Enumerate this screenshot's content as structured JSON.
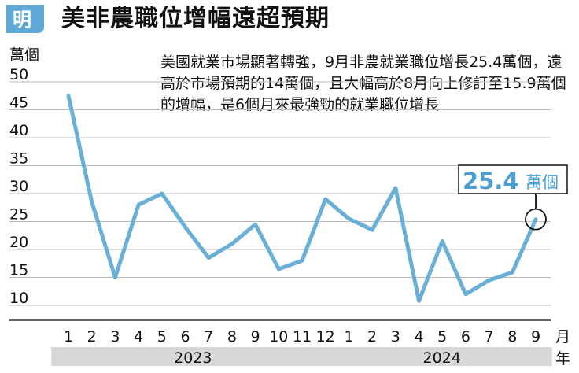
{
  "title": "美非農職位增幅遠超預期",
  "logo_text": "明",
  "annotation": "美國就業市場顯著轉強，9月非農就業職位增長25.4萬個，遠高於市場預期的14萬個，且大幅高於8月向上修訂至15.9萬個的增幅，是6個月來最強勁的就業職位增長",
  "colors": {
    "line": "#6aafd6",
    "logo": "#5fa9d6",
    "year_band": "#d8d8d8",
    "grid": "#bbbbbb",
    "callout_value": "#4a9fd0"
  },
  "chart_data": {
    "type": "line",
    "ylabel": "萬個",
    "xlabel": "月",
    "year_label": "年",
    "ylim": [
      10,
      50
    ],
    "yticks": [
      10,
      15,
      20,
      25,
      30,
      35,
      40,
      45,
      50
    ],
    "categories": [
      "1",
      "2",
      "3",
      "4",
      "5",
      "6",
      "7",
      "8",
      "9",
      "10",
      "11",
      "12",
      "1",
      "2",
      "3",
      "4",
      "5",
      "6",
      "7",
      "8",
      "9"
    ],
    "years": [
      {
        "label": "2023",
        "start": 0,
        "end": 11
      },
      {
        "label": "2024",
        "start": 12,
        "end": 20
      }
    ],
    "series": [
      {
        "values": [
          47.5,
          28.5,
          15,
          28,
          30,
          24,
          18.5,
          21,
          24.5,
          16.5,
          18,
          29,
          25.5,
          23.5,
          31,
          10.8,
          21.5,
          12,
          14.5,
          15.9,
          25.4
        ]
      }
    ],
    "callout": {
      "index": 20,
      "value": "25.4",
      "unit": "萬個"
    }
  }
}
